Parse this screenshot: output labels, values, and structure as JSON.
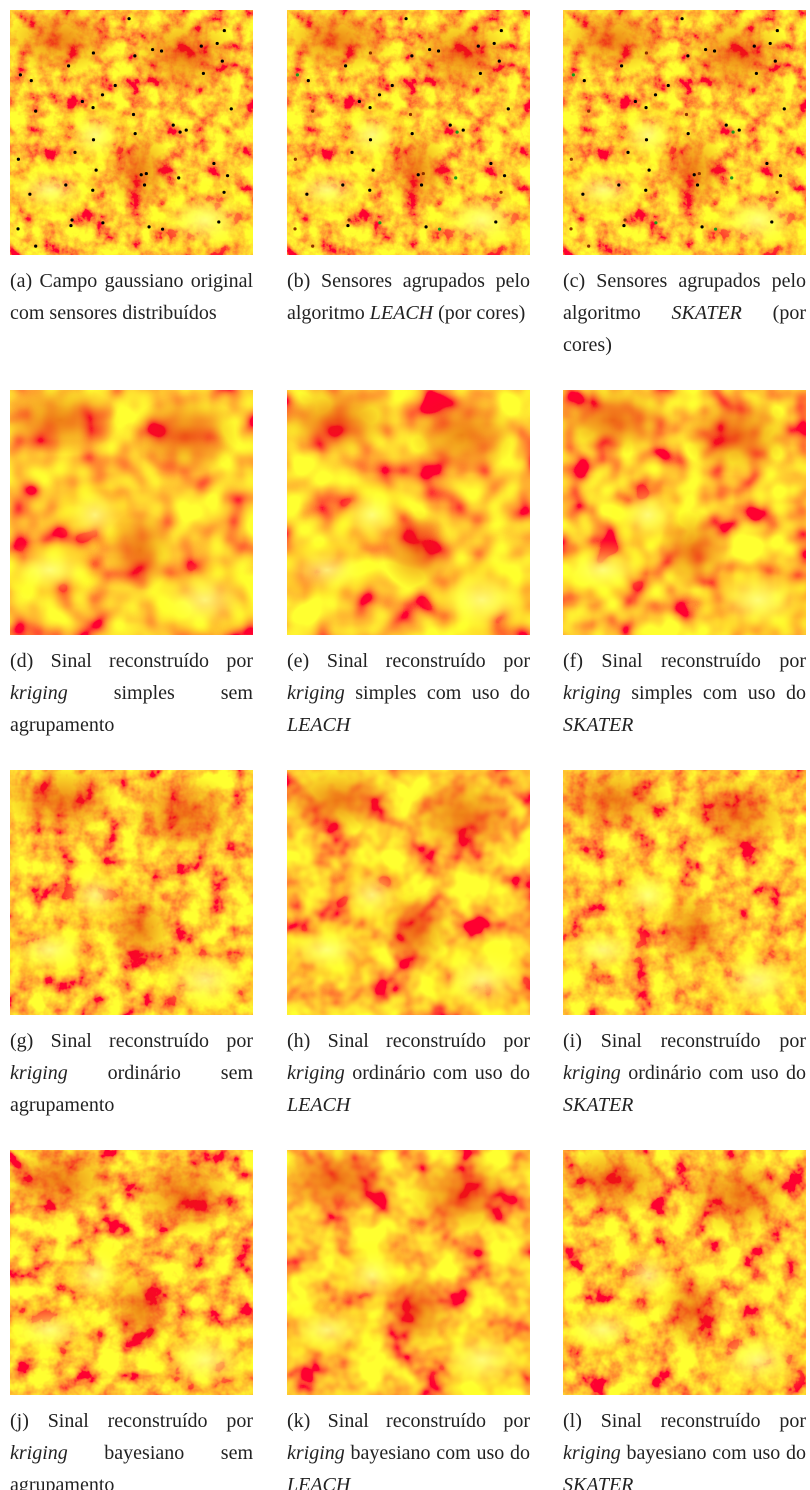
{
  "panels": [
    {
      "label": "(a)",
      "caption": [
        {
          "text": "Campo gaussiano original com sensores distribuídos"
        }
      ]
    },
    {
      "label": "(b)",
      "caption": [
        {
          "text": "Sensores agrupados pelo algoritmo "
        },
        {
          "text": "LEACH",
          "italic": true
        },
        {
          "text": " (por cores)"
        }
      ]
    },
    {
      "label": "(c)",
      "caption": [
        {
          "text": "Sensores agrupados pelo algoritmo "
        },
        {
          "text": "SKATER",
          "italic": true
        },
        {
          "text": " (por cores)"
        }
      ]
    },
    {
      "label": "(d)",
      "caption": [
        {
          "text": "Sinal reconstruído por "
        },
        {
          "text": "kriging",
          "italic": true
        },
        {
          "text": " simples sem agrupamento"
        }
      ]
    },
    {
      "label": "(e)",
      "caption": [
        {
          "text": "Sinal reconstruído por "
        },
        {
          "text": "kriging",
          "italic": true
        },
        {
          "text": " simples com uso do "
        },
        {
          "text": "LEACH",
          "italic": true
        }
      ]
    },
    {
      "label": "(f)",
      "caption": [
        {
          "text": "Sinal reconstruído por "
        },
        {
          "text": "kriging",
          "italic": true
        },
        {
          "text": " simples com uso do "
        },
        {
          "text": "SKATER",
          "italic": true
        }
      ]
    },
    {
      "label": "(g)",
      "caption": [
        {
          "text": "Sinal reconstruído por "
        },
        {
          "text": "kriging",
          "italic": true
        },
        {
          "text": " ordinário sem agrupamento"
        }
      ]
    },
    {
      "label": "(h)",
      "caption": [
        {
          "text": "Sinal reconstruído por "
        },
        {
          "text": "kriging",
          "italic": true
        },
        {
          "text": " ordinário com uso do "
        },
        {
          "text": "LEACH",
          "italic": true
        }
      ]
    },
    {
      "label": "(i)",
      "caption": [
        {
          "text": "Sinal reconstruído por "
        },
        {
          "text": "kriging",
          "italic": true
        },
        {
          "text": " ordinário com uso do "
        },
        {
          "text": "SKATER",
          "italic": true
        }
      ]
    },
    {
      "label": "(j)",
      "caption": [
        {
          "text": "Sinal reconstruído por "
        },
        {
          "text": "kriging",
          "italic": true
        },
        {
          "text": " bayesiano sem agrupamento"
        }
      ]
    },
    {
      "label": "(k)",
      "caption": [
        {
          "text": "Sinal reconstruído por "
        },
        {
          "text": "kriging",
          "italic": true
        },
        {
          "text": " bayesiano com uso do "
        },
        {
          "text": "LEACH",
          "italic": true
        }
      ]
    },
    {
      "label": "(l)",
      "caption": [
        {
          "text": "Sinal reconstruído por "
        },
        {
          "text": "kriging",
          "italic": true
        },
        {
          "text": " bayesiano com uso do "
        },
        {
          "text": "SKATER",
          "italic": true
        }
      ]
    }
  ]
}
